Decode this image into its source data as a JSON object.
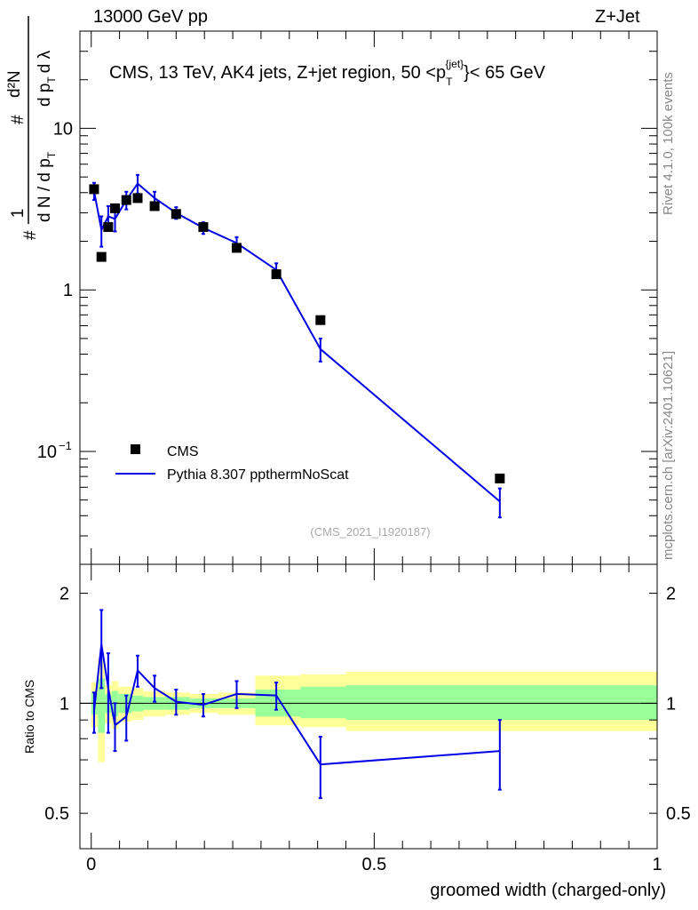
{
  "header": {
    "left": "13000 GeV pp",
    "right": "Z+Jet"
  },
  "side": {
    "top": "Rivet 4.1.0,  100k events",
    "bottom": "mcplots.cern.ch [arXiv:2401.10621]"
  },
  "colors": {
    "mc": "#0000e6",
    "data": "#000000",
    "band_inner": "#99ff99",
    "band_outer": "#ffff99"
  },
  "chart_data": [
    {
      "type": "scatter",
      "title": "CMS, 13 TeV, AK4 jets, Z+jet region, 50 <p_T^{jet}< 65 GeV",
      "title_parts": {
        "before": "CMS, 13 TeV, AK4 jets, Z+jet region, 50 <p",
        "sub": "T",
        "sup": "{jet}",
        "after": "}< 65 GeV"
      },
      "ylabel_parts": {
        "hash": "#",
        "one": "1",
        "dN": "d N / d p",
        "T": "T",
        "hash2": "#",
        "d2N": "d²N",
        "dp": "d p",
        "T2": "T",
        "dl": "d λ"
      },
      "xlabel": "groomed width (charged-only)",
      "yscale": "log",
      "ylim": [
        0.02,
        40
      ],
      "xlim": [
        -0.02,
        1.0
      ],
      "yticks": [
        {
          "v": 0.1,
          "label": "10",
          "exp": "−1"
        },
        {
          "v": 1,
          "label": "1"
        },
        {
          "v": 10,
          "label": "10"
        }
      ],
      "watermark": "(CMS_2021_I1920187)",
      "legend": {
        "position": "middle-left",
        "data_label": "CMS",
        "mc_label": "Pythia 8.307 ppthermNoScat"
      },
      "series": [
        {
          "name": "CMS",
          "marker": "square",
          "x": [
            0.005,
            0.018,
            0.03,
            0.042,
            0.062,
            0.082,
            0.112,
            0.15,
            0.198,
            0.257,
            0.327,
            0.405,
            0.722
          ],
          "y": [
            4.2,
            1.6,
            2.45,
            3.2,
            3.6,
            3.7,
            3.3,
            2.95,
            2.45,
            1.82,
            1.25,
            0.65,
            0.068
          ]
        },
        {
          "name": "Pythia 8.307 ppthermNoScat",
          "marker": "line",
          "x": [
            0.005,
            0.018,
            0.03,
            0.042,
            0.062,
            0.082,
            0.112,
            0.15,
            0.198,
            0.257,
            0.327,
            0.405,
            0.722
          ],
          "y": [
            4.1,
            2.35,
            2.85,
            2.75,
            3.6,
            4.55,
            3.7,
            3.0,
            2.42,
            1.95,
            1.33,
            0.43,
            0.049
          ],
          "err": [
            0.5,
            0.5,
            0.45,
            0.45,
            0.45,
            0.6,
            0.35,
            0.25,
            0.2,
            0.17,
            0.13,
            0.07,
            0.01
          ]
        }
      ]
    },
    {
      "type": "line",
      "ylabel": "Ratio to CMS",
      "yscale": "log",
      "ylim": [
        0.4,
        2.4
      ],
      "xlim": [
        -0.02,
        1.0
      ],
      "yticks": [
        {
          "v": 0.5,
          "label": "0.5"
        },
        {
          "v": 1,
          "label": "1"
        },
        {
          "v": 2,
          "label": "2"
        }
      ],
      "xticks": [
        {
          "v": 0,
          "label": "0"
        },
        {
          "v": 0.5,
          "label": "0.5"
        },
        {
          "v": 1,
          "label": "1"
        }
      ],
      "bands": [
        {
          "x0": 0.0,
          "x1": 0.012,
          "outer": [
            0.86,
            1.14
          ],
          "inner": [
            0.93,
            1.07
          ]
        },
        {
          "x0": 0.012,
          "x1": 0.024,
          "outer": [
            0.69,
            1.31
          ],
          "inner": [
            0.83,
            1.17
          ]
        },
        {
          "x0": 0.024,
          "x1": 0.036,
          "outer": [
            0.88,
            1.12
          ],
          "inner": [
            0.94,
            1.06
          ]
        },
        {
          "x0": 0.036,
          "x1": 0.048,
          "outer": [
            0.85,
            1.15
          ],
          "inner": [
            0.92,
            1.08
          ]
        },
        {
          "x0": 0.048,
          "x1": 0.072,
          "outer": [
            0.89,
            1.11
          ],
          "inner": [
            0.94,
            1.06
          ]
        },
        {
          "x0": 0.072,
          "x1": 0.092,
          "outer": [
            0.9,
            1.1
          ],
          "inner": [
            0.95,
            1.05
          ]
        },
        {
          "x0": 0.092,
          "x1": 0.13,
          "outer": [
            0.92,
            1.08
          ],
          "inner": [
            0.96,
            1.04
          ]
        },
        {
          "x0": 0.13,
          "x1": 0.175,
          "outer": [
            0.93,
            1.07
          ],
          "inner": [
            0.96,
            1.04
          ]
        },
        {
          "x0": 0.175,
          "x1": 0.225,
          "outer": [
            0.94,
            1.06
          ],
          "inner": [
            0.97,
            1.03
          ]
        },
        {
          "x0": 0.225,
          "x1": 0.29,
          "outer": [
            0.93,
            1.07
          ],
          "inner": [
            0.97,
            1.03
          ]
        },
        {
          "x0": 0.29,
          "x1": 0.37,
          "outer": [
            0.87,
            1.19
          ],
          "inner": [
            0.92,
            1.09
          ]
        },
        {
          "x0": 0.37,
          "x1": 0.45,
          "outer": [
            0.86,
            1.2
          ],
          "inner": [
            0.91,
            1.11
          ]
        },
        {
          "x0": 0.45,
          "x1": 1.0,
          "outer": [
            0.84,
            1.22
          ],
          "inner": [
            0.9,
            1.12
          ]
        }
      ],
      "ratio": {
        "x": [
          0.005,
          0.018,
          0.03,
          0.042,
          0.062,
          0.082,
          0.112,
          0.15,
          0.198,
          0.257,
          0.327,
          0.405,
          0.722
        ],
        "y": [
          0.95,
          1.45,
          1.1,
          0.87,
          0.92,
          1.23,
          1.1,
          1.01,
          0.99,
          1.06,
          1.05,
          0.68,
          0.74
        ],
        "err": [
          0.12,
          0.35,
          0.27,
          0.13,
          0.13,
          0.12,
          0.09,
          0.08,
          0.07,
          0.09,
          0.09,
          0.13,
          0.16
        ]
      }
    }
  ]
}
